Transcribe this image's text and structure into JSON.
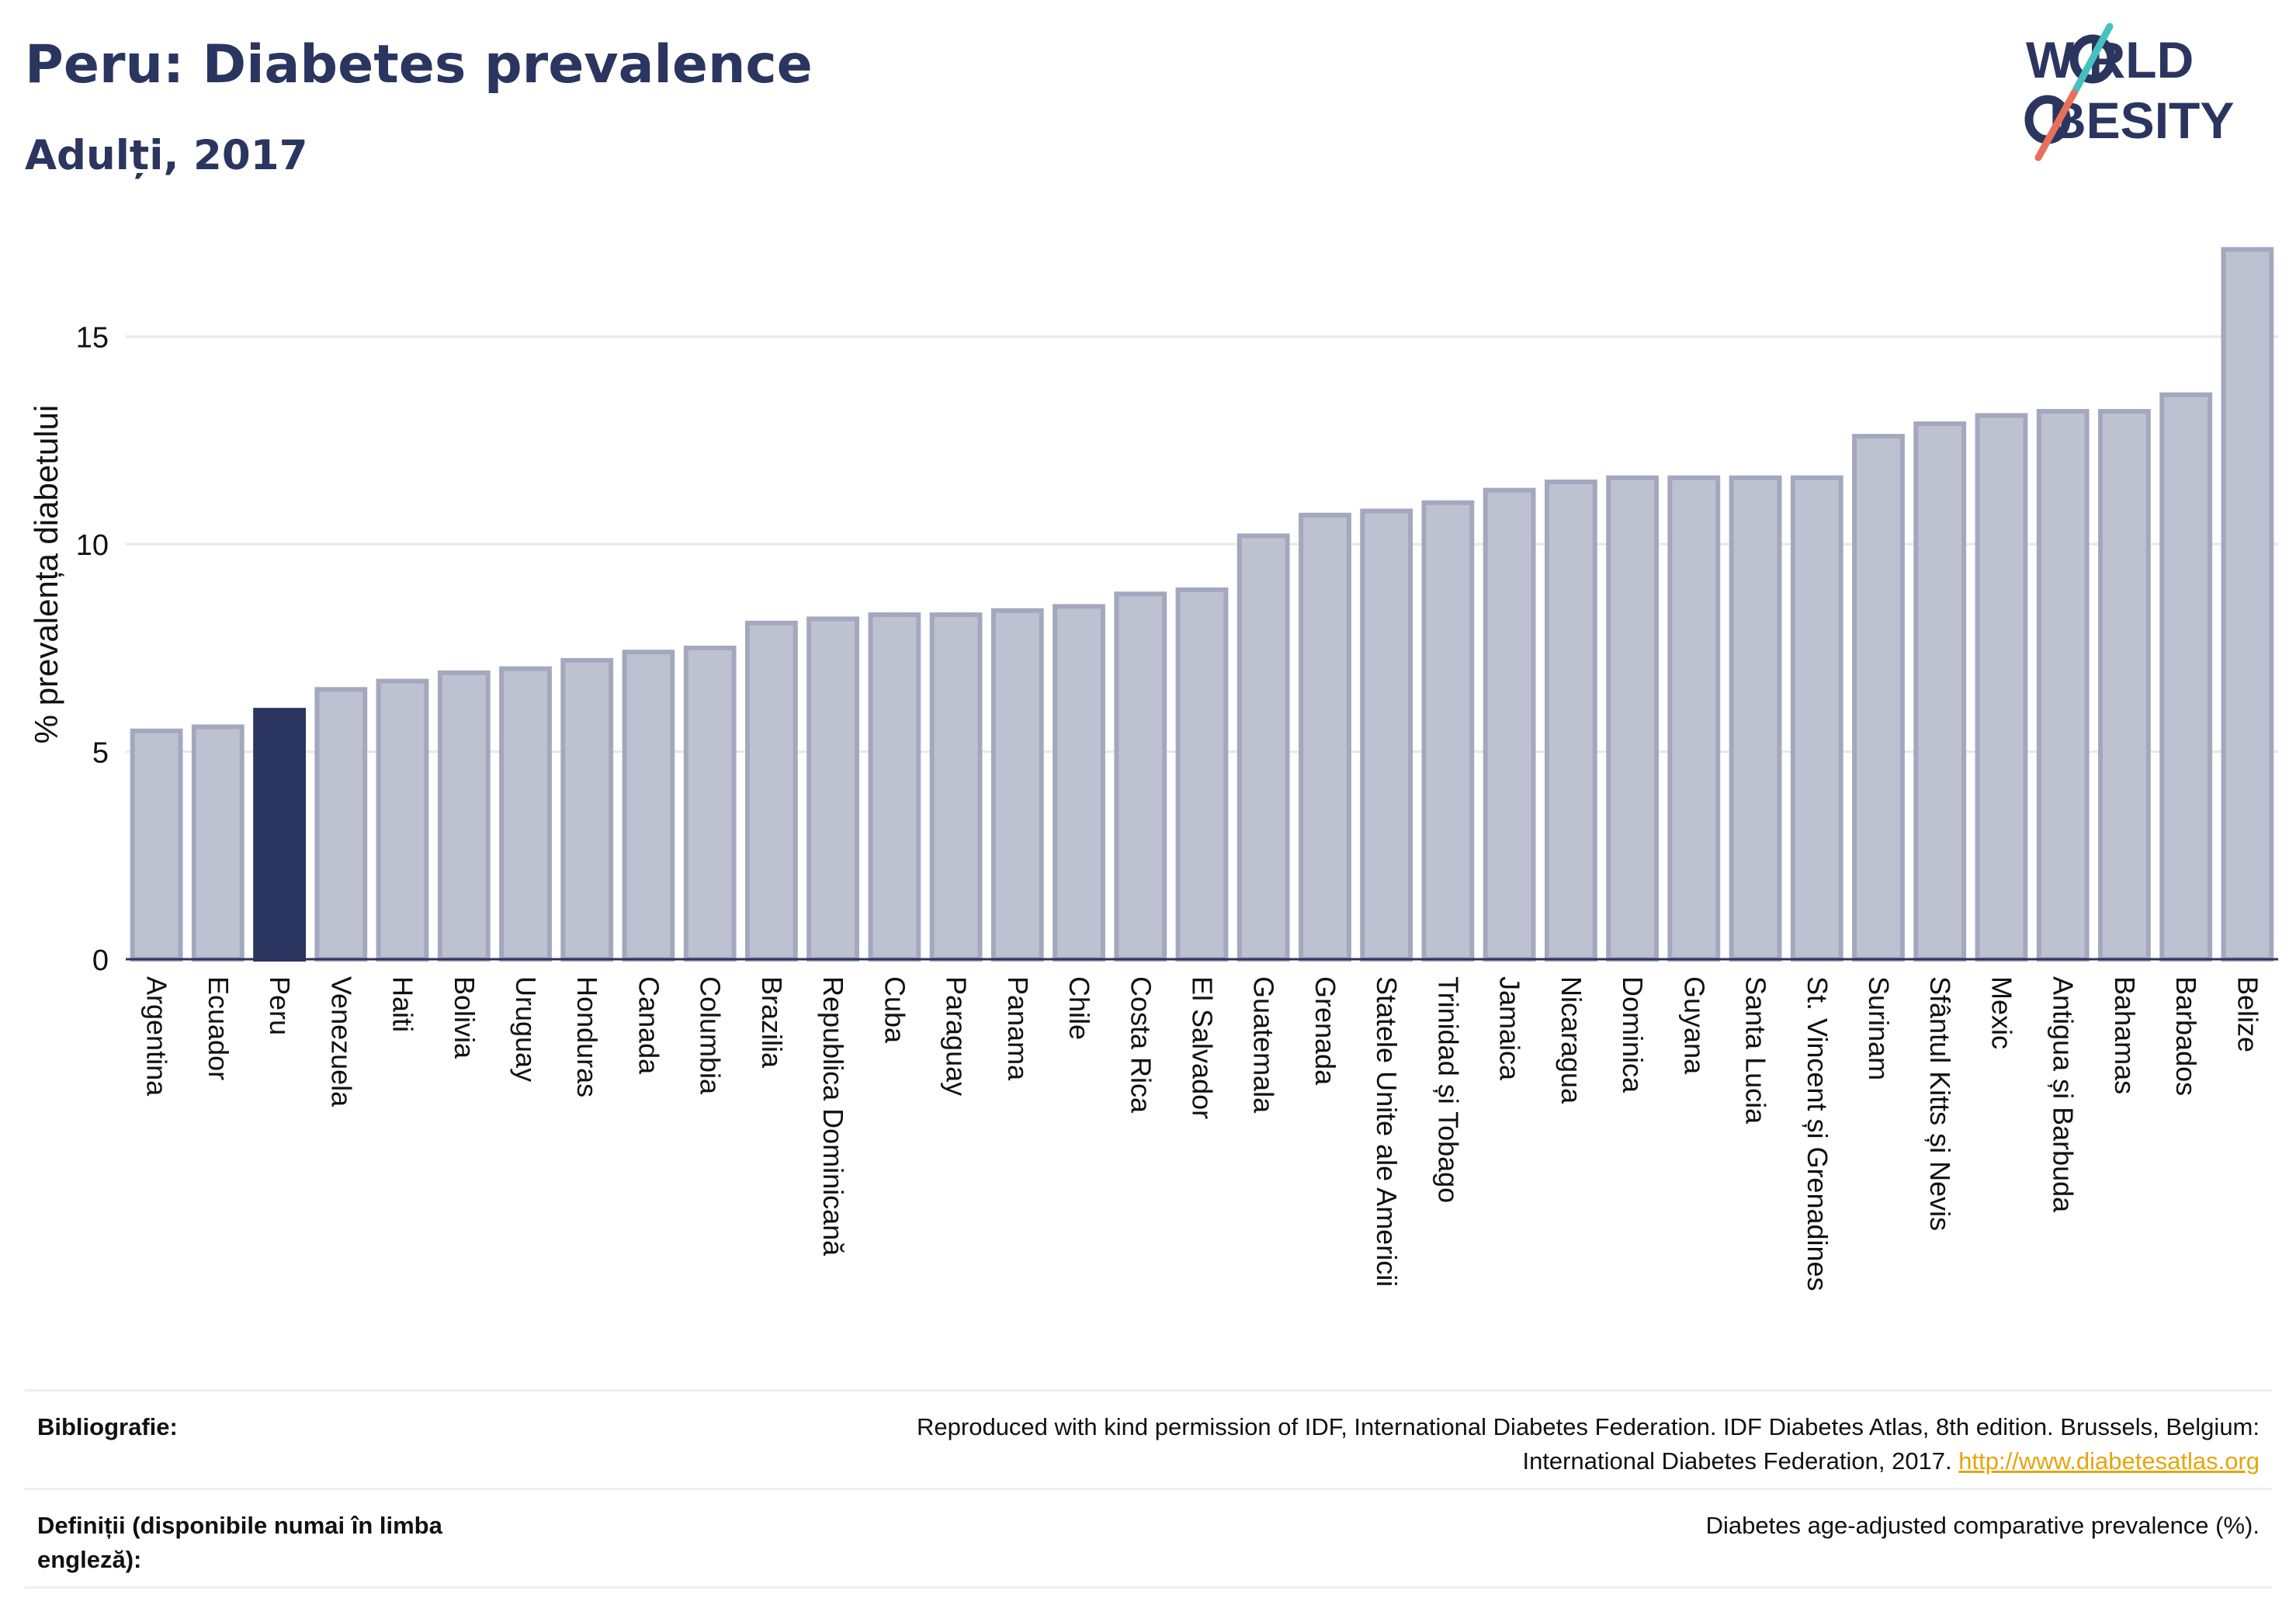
{
  "header": {
    "title": "Peru: Diabetes prevalence",
    "subtitle": "Adulți, 2017"
  },
  "logo": {
    "line1": "W  RLD",
    "line2": "BESITY",
    "slash_colors": [
      "#47c1bf",
      "#e8705a"
    ],
    "text_color": "#2a3560"
  },
  "colors": {
    "bar": "#bec1cf",
    "bar_stroke": "#a3a8bf",
    "highlight": "#2a3560",
    "grid": "#e7e7ec",
    "axis": "#2a3560"
  },
  "chart_data": {
    "type": "bar",
    "title": "",
    "xlabel": "",
    "ylabel": "% prevalența diabetului",
    "ylim": [
      0,
      17.5
    ],
    "yticks": [
      0,
      5,
      10,
      15
    ],
    "grid": true,
    "highlight": "Peru",
    "categories": [
      "Argentina",
      "Ecuador",
      "Peru",
      "Venezuela",
      "Haiti",
      "Bolivia",
      "Uruguay",
      "Honduras",
      "Canada",
      "Columbia",
      "Brazilia",
      "Republica Dominicană",
      "Cuba",
      "Paraguay",
      "Panama",
      "Chile",
      "Costa Rica",
      "El Salvador",
      "Guatemala",
      "Grenada",
      "Statele Unite ale Americii",
      "Trinidad și Tobago",
      "Jamaica",
      "Nicaragua",
      "Dominica",
      "Guyana",
      "Santa Lucia",
      "St. Vincent și Grenadines",
      "Surinam",
      "Sfântul Kitts și Nevis",
      "Mexic",
      "Antigua și Barbuda",
      "Bahamas",
      "Barbados",
      "Belize"
    ],
    "values": [
      5.5,
      5.6,
      6.0,
      6.5,
      6.7,
      6.9,
      7.0,
      7.2,
      7.4,
      7.5,
      8.1,
      8.2,
      8.3,
      8.3,
      8.4,
      8.5,
      8.8,
      8.9,
      10.2,
      10.7,
      10.8,
      11.0,
      11.3,
      11.5,
      11.6,
      11.6,
      11.6,
      11.6,
      12.6,
      12.9,
      13.1,
      13.2,
      13.2,
      13.6,
      17.1
    ]
  },
  "footer": {
    "bib_label": "Bibliografie:",
    "bib_text_1": "Reproduced with kind permission of IDF, International Diabetes Federation. IDF Diabetes Atlas, 8th edition. Brussels, Belgium:",
    "bib_text_2": "International Diabetes Federation, 2017.",
    "bib_link": "http://www.diabetesatlas.org",
    "def_label": "Definiții (disponibile numai în limba engleză):",
    "def_text": "Diabetes age-adjusted comparative prevalence (%)."
  }
}
